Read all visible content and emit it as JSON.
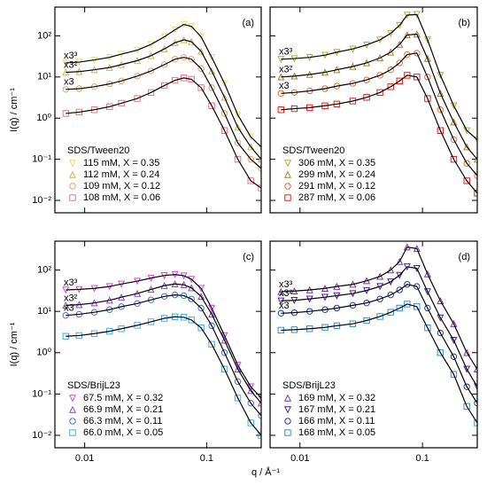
{
  "chart_data": [
    {
      "type": "scatter",
      "panel_label": "(a)",
      "legend_title": "SDS/Tween20",
      "ylabel": "I(q) / cm⁻¹",
      "x": [
        0.007,
        0.009,
        0.012,
        0.016,
        0.02,
        0.027,
        0.035,
        0.045,
        0.055,
        0.065,
        0.075,
        0.09,
        0.11,
        0.14,
        0.18,
        0.23,
        0.28
      ],
      "xlim": [
        0.0057,
        0.28
      ],
      "ylim": [
        0.005,
        500
      ],
      "log_x": true,
      "log_y": true,
      "xtick_labels": false,
      "ytick_labels": true,
      "xticks": [
        0.01,
        0.1
      ],
      "yticks": [
        {
          "value": 0.01,
          "label": "10⁻²"
        },
        {
          "value": 0.1,
          "label": "10⁻¹"
        },
        {
          "value": 1,
          "label": "10⁰"
        },
        {
          "value": 10,
          "label": "10¹"
        },
        {
          "value": 100,
          "label": "10²"
        }
      ],
      "annotations": [
        "x3³",
        "x3²",
        "x3"
      ],
      "series": [
        {
          "name": "115 mM, X = 0.35",
          "color": "#e4e070",
          "marker": "triangle-down",
          "values": [
            22,
            23,
            26,
            30,
            36,
            45,
            62,
            95,
            140,
            190,
            170,
            95,
            30,
            7,
            1.2,
            0.35,
            0.2
          ]
        },
        {
          "name": "112 mM, X = 0.24",
          "color": "#c8b850",
          "marker": "triangle-up",
          "values": [
            13,
            13.5,
            15,
            17,
            20,
            25,
            33,
            48,
            68,
            80,
            72,
            42,
            14,
            3.2,
            0.6,
            0.2,
            0.1
          ]
        },
        {
          "name": "109 mM, X = 0.12",
          "color": "#e8a060",
          "marker": "circle",
          "values": [
            5,
            5.2,
            5.8,
            6.8,
            8,
            10.5,
            14,
            20,
            27,
            30,
            27,
            16,
            5.5,
            1.3,
            0.25,
            0.1,
            0.06
          ]
        },
        {
          "name": "108 mM, X = 0.06",
          "color": "#f07080",
          "marker": "square",
          "values": [
            1.3,
            1.4,
            1.6,
            1.9,
            2.3,
            3,
            4.2,
            6.2,
            8.3,
            9.5,
            8.8,
            5.5,
            2,
            0.5,
            0.1,
            0.03,
            0.02
          ]
        }
      ]
    },
    {
      "type": "scatter",
      "panel_label": "(b)",
      "legend_title": "SDS/Tween20",
      "x": [
        0.007,
        0.009,
        0.012,
        0.016,
        0.02,
        0.027,
        0.035,
        0.045,
        0.055,
        0.065,
        0.075,
        0.09,
        0.11,
        0.14,
        0.18,
        0.23,
        0.28
      ],
      "xlim": [
        0.0057,
        0.28
      ],
      "ylim": [
        0.005,
        500
      ],
      "log_x": true,
      "log_y": true,
      "xtick_labels": false,
      "ytick_labels": false,
      "xticks": [
        0.01,
        0.1
      ],
      "yticks": [
        0.01,
        0.1,
        1,
        10,
        100
      ],
      "annotations": [
        "x3³",
        "x3²",
        "x3"
      ],
      "series": [
        {
          "name": "306 mM, X = 0.35",
          "color": "#b0b030",
          "marker": "triangle-down",
          "values": [
            27,
            28,
            30,
            34,
            40,
            48,
            60,
            80,
            115,
            180,
            320,
            330,
            80,
            11,
            2,
            0.5,
            0.3
          ]
        },
        {
          "name": "299 mM, X = 0.24",
          "color": "#a08020",
          "marker": "triangle-up",
          "values": [
            10,
            10.5,
            11.5,
            13,
            15,
            18,
            22,
            29,
            40,
            62,
            105,
            110,
            28,
            4,
            0.8,
            0.2,
            0.1
          ]
        },
        {
          "name": "291 mM, X = 0.12",
          "color": "#e07030",
          "marker": "circle",
          "values": [
            4,
            4.2,
            4.6,
            5.2,
            6,
            7,
            8.5,
            11,
            15,
            22,
            35,
            38,
            10,
            1.6,
            0.3,
            0.08,
            0.04
          ]
        },
        {
          "name": "287 mM, X = 0.06",
          "color": "#e02020",
          "marker": "square",
          "values": [
            1.6,
            1.7,
            1.8,
            2,
            2.2,
            2.6,
            3.2,
            4.2,
            5.8,
            8,
            11,
            10,
            3,
            0.5,
            0.1,
            0.03,
            0.015
          ]
        }
      ]
    },
    {
      "type": "scatter",
      "panel_label": "(c)",
      "legend_title": "SDS/BrijL23",
      "ylabel": "I(q) / cm⁻¹",
      "xlabel": "q / Å⁻¹",
      "x": [
        0.007,
        0.009,
        0.012,
        0.016,
        0.02,
        0.027,
        0.035,
        0.045,
        0.055,
        0.065,
        0.075,
        0.09,
        0.11,
        0.14,
        0.18,
        0.23,
        0.28
      ],
      "xlim": [
        0.0057,
        0.28
      ],
      "ylim": [
        0.005,
        500
      ],
      "log_x": true,
      "log_y": true,
      "xtick_labels": true,
      "ytick_labels": true,
      "xticks": [
        0.01,
        0.1
      ],
      "yticks": [
        {
          "value": 0.01,
          "label": "10⁻²"
        },
        {
          "value": 0.1,
          "label": "10⁻¹"
        },
        {
          "value": 1,
          "label": "10⁰"
        },
        {
          "value": 10,
          "label": "10¹"
        },
        {
          "value": 100,
          "label": "10²"
        }
      ],
      "annotations": [
        "x3³",
        "x3²",
        "x3"
      ],
      "series": [
        {
          "name": "67.5 mM, X = 0.32",
          "color": "#e040e0",
          "marker": "triangle-down",
          "values": [
            33,
            34,
            36,
            40,
            46,
            54,
            64,
            74,
            78,
            73,
            60,
            36,
            12,
            2.6,
            0.5,
            0.15,
            0.08
          ]
        },
        {
          "name": "66.9 mM, X = 0.21",
          "color": "#9040d0",
          "marker": "triangle-up",
          "values": [
            14,
            14.5,
            16,
            18.5,
            22,
            27,
            34,
            42,
            46,
            44,
            37,
            23,
            8.5,
            2,
            0.4,
            0.12,
            0.06
          ]
        },
        {
          "name": "66.3 mM, X = 0.11",
          "color": "#4070e0",
          "marker": "circle",
          "values": [
            8,
            8.5,
            9.5,
            11,
            13,
            15.5,
            19,
            23,
            25,
            24,
            20,
            12,
            4.5,
            1,
            0.2,
            0.06,
            0.03
          ]
        },
        {
          "name": "66.0 mM, X = 0.05",
          "color": "#40b0e0",
          "marker": "square",
          "values": [
            2.5,
            2.6,
            2.9,
            3.3,
            3.8,
            4.6,
            5.6,
            6.8,
            7.4,
            7.2,
            6.2,
            4,
            1.6,
            0.4,
            0.08,
            0.02,
            0.01
          ]
        }
      ]
    },
    {
      "type": "scatter",
      "panel_label": "(d)",
      "legend_title": "SDS/BrijL23",
      "x": [
        0.007,
        0.009,
        0.012,
        0.016,
        0.02,
        0.027,
        0.035,
        0.045,
        0.055,
        0.065,
        0.075,
        0.09,
        0.11,
        0.14,
        0.18,
        0.23,
        0.28
      ],
      "xlim": [
        0.0057,
        0.28
      ],
      "ylim": [
        0.005,
        500
      ],
      "log_x": true,
      "log_y": true,
      "xtick_labels": true,
      "ytick_labels": false,
      "xticks": [
        0.01,
        0.1
      ],
      "yticks": [
        0.01,
        0.1,
        1,
        10,
        100
      ],
      "annotations": [
        "x3³",
        "x3²",
        "x3"
      ],
      "series": [
        {
          "name": "169 mM, X = 0.32",
          "color": "#8030a0",
          "marker": "triangle-up",
          "values": [
            30,
            31,
            33,
            36,
            40,
            45,
            55,
            70,
            100,
            160,
            360,
            330,
            80,
            18,
            5,
            1,
            0.4
          ]
        },
        {
          "name": "167 mM, X = 0.21",
          "color": "#4020a0",
          "marker": "triangle-down",
          "values": [
            18,
            18.5,
            20,
            22,
            24,
            27,
            32,
            40,
            52,
            75,
            120,
            110,
            30,
            7,
            2,
            0.4,
            0.15
          ]
        },
        {
          "name": "166 mM, X = 0.11",
          "color": "#2040a0",
          "marker": "circle",
          "values": [
            9,
            9.3,
            10,
            11,
            12,
            14,
            16,
            20,
            25,
            33,
            45,
            40,
            12,
            3,
            0.8,
            0.15,
            0.06
          ]
        },
        {
          "name": "168 mM, X = 0.05",
          "color": "#3090d0",
          "marker": "square",
          "values": [
            3.5,
            3.6,
            3.8,
            4.1,
            4.5,
            5,
            6,
            7.5,
            9.5,
            12,
            15,
            13,
            4,
            1,
            0.3,
            0.05,
            0.02
          ]
        }
      ]
    }
  ]
}
